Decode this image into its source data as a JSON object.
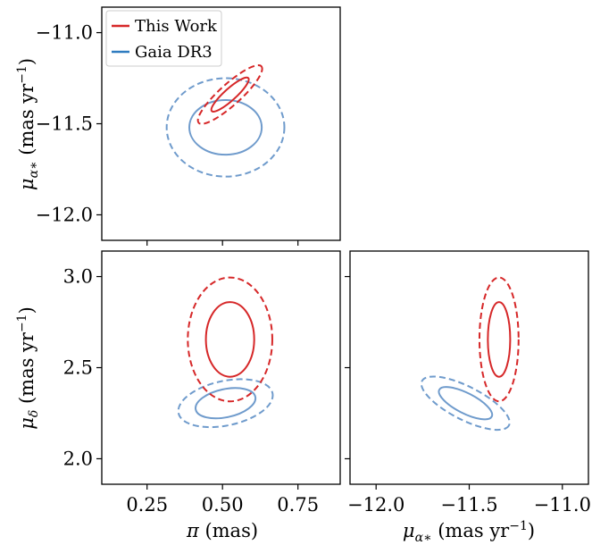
{
  "chart_data": {
    "type": "scatter",
    "colors": {
      "this_work": "#d62728",
      "gaia": "#6f9bcc"
    },
    "legend": {
      "placement": "top-left of top-left panel",
      "entries": [
        {
          "label": "This Work",
          "color": "#d62728"
        },
        {
          "label": "Gaia DR3",
          "color": "#2f7cc0"
        }
      ]
    },
    "parameters": {
      "plx": {
        "label": "π (mas)",
        "ticks": [
          "0.25",
          "0.50",
          "0.75"
        ],
        "range": [
          0.1,
          0.89
        ]
      },
      "pmra": {
        "label": "μα* (mas yr−1)",
        "ticks": [
          "−12.0",
          "−11.5",
          "−11.0"
        ],
        "range": [
          -12.14,
          -10.86
        ]
      },
      "pmdec": {
        "label": "μδ (mas yr−1)",
        "ticks": [
          "2.0",
          "2.5",
          "3.0"
        ],
        "range": [
          1.86,
          3.14
        ]
      }
    },
    "panels": [
      {
        "name": "pmra-vs-plx",
        "x": "plx",
        "y": "pmra",
        "ellipses": [
          {
            "source": "gaia",
            "level": "inner",
            "style": "solid",
            "cx": 0.51,
            "cy": -11.52,
            "a": 0.12,
            "b": 0.15,
            "angle": 0
          },
          {
            "source": "gaia",
            "level": "outer",
            "style": "dashed",
            "cx": 0.51,
            "cy": -11.52,
            "a": 0.195,
            "b": 0.27,
            "angle": 0
          },
          {
            "source": "this_work",
            "level": "inner",
            "style": "solid",
            "cx": 0.525,
            "cy": -11.34,
            "a": 0.105,
            "b": 0.025,
            "angle": 42
          },
          {
            "source": "this_work",
            "level": "outer",
            "style": "dashed",
            "cx": 0.525,
            "cy": -11.34,
            "a": 0.18,
            "b": 0.045,
            "angle": 42
          }
        ]
      },
      {
        "name": "pmdec-vs-plx",
        "x": "plx",
        "y": "pmdec",
        "ellipses": [
          {
            "source": "gaia",
            "level": "inner",
            "style": "solid",
            "cx": 0.51,
            "cy": 2.305,
            "a": 0.13,
            "b": 0.06,
            "angle": 12
          },
          {
            "source": "gaia",
            "level": "outer",
            "style": "dashed",
            "cx": 0.51,
            "cy": 2.305,
            "a": 0.205,
            "b": 0.095,
            "angle": 12
          },
          {
            "source": "this_work",
            "level": "inner",
            "style": "solid",
            "cx": 0.525,
            "cy": 2.655,
            "a": 0.08,
            "b": 0.205,
            "angle": 0
          },
          {
            "source": "this_work",
            "level": "outer",
            "style": "dashed",
            "cx": 0.525,
            "cy": 2.655,
            "a": 0.14,
            "b": 0.34,
            "angle": 0
          }
        ]
      },
      {
        "name": "pmdec-vs-pmra",
        "x": "pmra",
        "y": "pmdec",
        "ellipses": [
          {
            "source": "gaia",
            "level": "inner",
            "style": "solid",
            "cx": -11.52,
            "cy": 2.305,
            "a": 0.16,
            "b": 0.055,
            "angle": -27
          },
          {
            "source": "gaia",
            "level": "outer",
            "style": "dashed",
            "cx": -11.52,
            "cy": 2.305,
            "a": 0.265,
            "b": 0.09,
            "angle": -27
          },
          {
            "source": "this_work",
            "level": "inner",
            "style": "solid",
            "cx": -11.34,
            "cy": 2.655,
            "a": 0.06,
            "b": 0.205,
            "angle": 0
          },
          {
            "source": "this_work",
            "level": "outer",
            "style": "dashed",
            "cx": -11.34,
            "cy": 2.655,
            "a": 0.105,
            "b": 0.34,
            "angle": 0
          }
        ]
      }
    ]
  }
}
